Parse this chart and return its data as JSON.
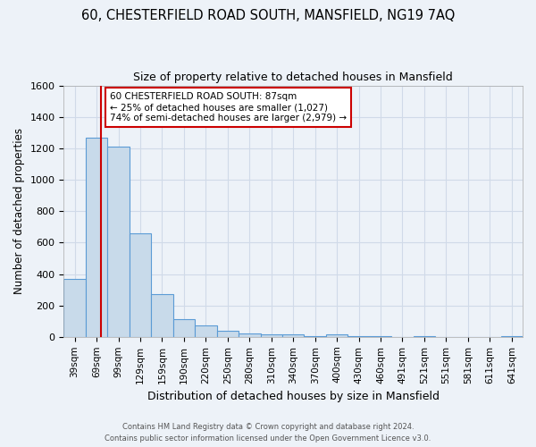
{
  "title1": "60, CHESTERFIELD ROAD SOUTH, MANSFIELD, NG19 7AQ",
  "title2": "Size of property relative to detached houses in Mansfield",
  "xlabel": "Distribution of detached houses by size in Mansfield",
  "ylabel": "Number of detached properties",
  "categories": [
    "39sqm",
    "69sqm",
    "99sqm",
    "129sqm",
    "159sqm",
    "190sqm",
    "220sqm",
    "250sqm",
    "280sqm",
    "310sqm",
    "340sqm",
    "370sqm",
    "400sqm",
    "430sqm",
    "460sqm",
    "491sqm",
    "521sqm",
    "551sqm",
    "581sqm",
    "611sqm",
    "641sqm"
  ],
  "values": [
    370,
    1265,
    1210,
    660,
    270,
    115,
    75,
    38,
    22,
    16,
    16,
    2,
    15,
    2,
    2,
    0,
    2,
    0,
    0,
    0,
    2
  ],
  "bar_color": "#c8daea",
  "bar_edge_color": "#5b9bd5",
  "red_line_x": 1.2,
  "annotation_title": "60 CHESTERFIELD ROAD SOUTH: 87sqm",
  "annotation_line1": "← 25% of detached houses are smaller (1,027)",
  "annotation_line2": "74% of semi-detached houses are larger (2,979) →",
  "annotation_box_edge": "#cc0000",
  "red_line_color": "#cc0000",
  "ylim": [
    0,
    1600
  ],
  "yticks": [
    0,
    200,
    400,
    600,
    800,
    1000,
    1200,
    1400,
    1600
  ],
  "footer1": "Contains HM Land Registry data © Crown copyright and database right 2024.",
  "footer2": "Contains public sector information licensed under the Open Government Licence v3.0.",
  "bg_color": "#edf2f8",
  "grid_color": "#d0dae8",
  "title1_fontsize": 10.5,
  "title2_fontsize": 9
}
